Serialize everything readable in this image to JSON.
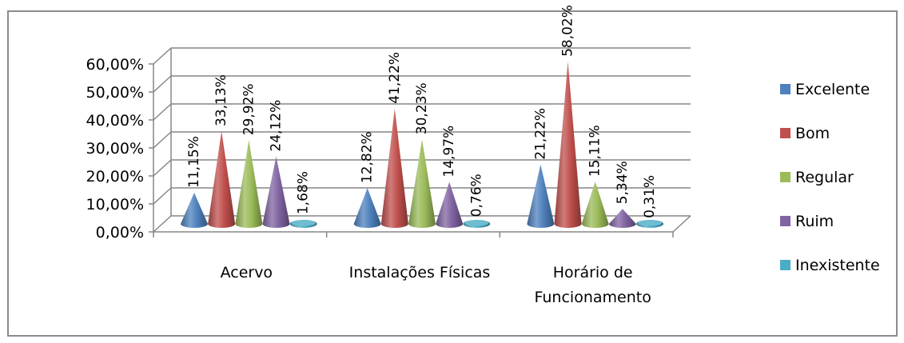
{
  "chart_data": {
    "type": "bar",
    "subtype": "3d-cone",
    "categories": [
      "Acervo",
      "Instalações Físicas",
      "Horário de Funcionamento"
    ],
    "category_lines": [
      [
        "Acervo"
      ],
      [
        "Instalações Físicas"
      ],
      [
        "Horário de",
        "Funcionamento"
      ]
    ],
    "series": [
      {
        "name": "Excelente",
        "color": "#4F81BD",
        "values": [
          11.15,
          12.82,
          21.22
        ],
        "labels": [
          "11,15%",
          "12,82%",
          "21,22%"
        ]
      },
      {
        "name": "Bom",
        "color": "#C0504D",
        "values": [
          33.13,
          41.22,
          58.02
        ],
        "labels": [
          "33,13%",
          "41,22%",
          "58,02%"
        ]
      },
      {
        "name": "Regular",
        "color": "#9BBB59",
        "values": [
          29.92,
          30.23,
          15.11
        ],
        "labels": [
          "29,92%",
          "30,23%",
          "15,11%"
        ]
      },
      {
        "name": "Ruim",
        "color": "#8064A2",
        "values": [
          24.12,
          14.97,
          5.34
        ],
        "labels": [
          "24,12%",
          "14,97%",
          "5,34%"
        ]
      },
      {
        "name": "Inexistente",
        "color": "#4BACC6",
        "values": [
          1.68,
          0.76,
          0.31
        ],
        "labels": [
          "1,68%",
          "0,76%",
          "0,31%"
        ]
      }
    ],
    "yticks": [
      "0,00%",
      "10,00%",
      "20,00%",
      "30,00%",
      "40,00%",
      "50,00%",
      "60,00%"
    ],
    "ylim": [
      0,
      60
    ],
    "grid": true,
    "legend_position": "right"
  }
}
